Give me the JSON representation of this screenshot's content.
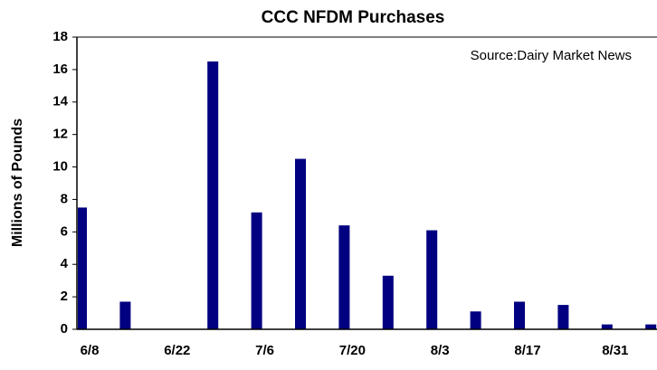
{
  "chart_data": {
    "type": "bar",
    "title": "CCC NFDM Purchases",
    "annotation": "Source:Dairy Market News",
    "y_label": "Millions of Pounds",
    "categories": [
      "6/8",
      null,
      "6/22",
      null,
      "7/6",
      null,
      "7/20",
      null,
      "8/3",
      null,
      "8/17",
      null,
      "8/31",
      null
    ],
    "values": [
      7.5,
      1.7,
      0,
      16.5,
      7.2,
      10.5,
      6.4,
      3.3,
      6.1,
      1.1,
      1.7,
      1.5,
      0.3,
      0.3
    ],
    "color": "#000080",
    "ylim": [
      0,
      18
    ],
    "yticks": [
      0,
      2,
      4,
      6,
      8,
      10,
      12,
      14,
      16,
      18
    ],
    "grid": false
  }
}
